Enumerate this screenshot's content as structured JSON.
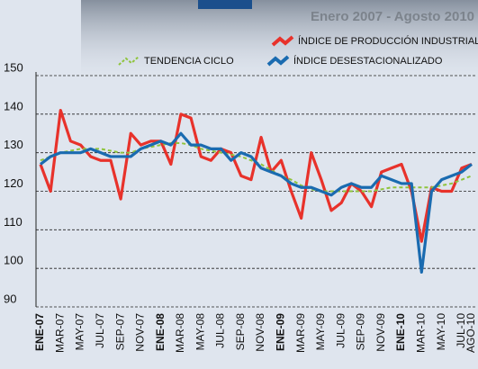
{
  "chart_data": {
    "type": "line",
    "subtitle": "Enero 2007 - Agosto 2010",
    "categories": [
      "ENE-07",
      null,
      "MAR-07",
      null,
      "MAY-07",
      null,
      "JUL-07",
      null,
      "SEP-07",
      null,
      "NOV-07",
      null,
      "ENE-08",
      null,
      "MAR-08",
      null,
      "MAY-08",
      null,
      "JUL-08",
      null,
      "SEP-08",
      null,
      "NOV-08",
      null,
      "ENE-09",
      null,
      "MAR-09",
      null,
      "MAY-09",
      null,
      "JUL-09",
      null,
      "SEP-09",
      null,
      "NOV-09",
      null,
      "ENE-10",
      null,
      "MAR-10",
      null,
      "MAY-10",
      null,
      "JUL-10",
      "AGO-10"
    ],
    "series": [
      {
        "name": "ÍNDICE DE PRODUCCIÓN INDUSTRIAL",
        "color": "#e8322b",
        "dashed": false,
        "values": [
          127,
          120,
          141,
          133,
          132,
          129,
          128,
          128,
          118,
          135,
          132,
          133,
          133,
          127,
          140,
          139,
          129,
          128,
          131,
          130,
          124,
          123,
          134,
          125,
          128,
          120,
          113,
          130,
          123,
          115,
          117,
          122,
          120,
          116,
          125,
          126,
          127,
          120,
          107,
          121,
          120,
          120,
          126,
          127
        ]
      },
      {
        "name": "TENDENCIA CICLO",
        "color": "#8fc43c",
        "dashed": true,
        "values": [
          128,
          129,
          130,
          130.5,
          131,
          131,
          131,
          130.5,
          130,
          130,
          131,
          131.5,
          132,
          132.5,
          132.5,
          132,
          131,
          130.5,
          130,
          129.5,
          129,
          128,
          127,
          125.5,
          124,
          123,
          121.5,
          120.5,
          120,
          120,
          120,
          120,
          120,
          120,
          120.5,
          121,
          121,
          121,
          121,
          121,
          121.5,
          122,
          123,
          124
        ]
      },
      {
        "name": "ÍNDICE DESESTACIONALIZADO",
        "color": "#1a6bb0",
        "dashed": false,
        "values": [
          127,
          129,
          130,
          130,
          130,
          131,
          130,
          129,
          129,
          129,
          131,
          132,
          133,
          132,
          135,
          132,
          132,
          131,
          131,
          128,
          130,
          129,
          126,
          125,
          124,
          122,
          121,
          121,
          120,
          119,
          121,
          122,
          121,
          121,
          124,
          123,
          122,
          122,
          99,
          120,
          123,
          124,
          125,
          127
        ]
      }
    ],
    "ylim": [
      90,
      150
    ],
    "yticks": [
      90,
      100,
      110,
      120,
      130,
      140,
      150
    ],
    "grid": true,
    "legend": "top"
  }
}
